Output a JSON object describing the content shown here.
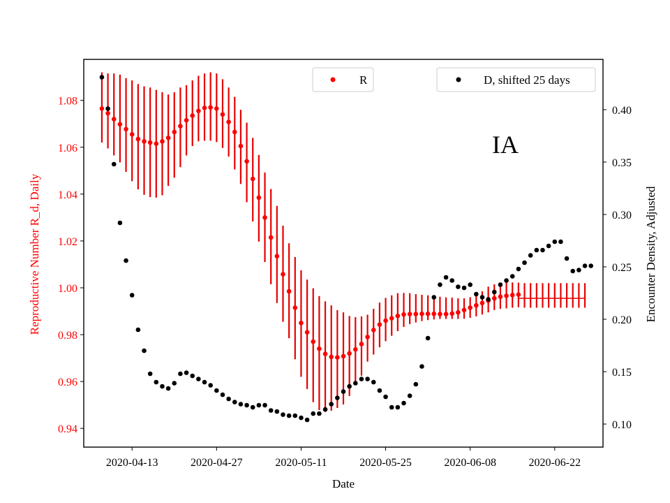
{
  "chart_data": {
    "type": "scatter",
    "xlabel": "Date",
    "ylabel_left": "Reproductive Number R_d, Daily",
    "ylabel_right": "Encounter Density, Adjusted",
    "annotation": "IA",
    "x_start": "2020-04-08",
    "x_end": "2020-06-28",
    "x_range": [
      "2020-04-05",
      "2020-06-30"
    ],
    "x_ticks": [
      "2020-04-13",
      "2020-04-27",
      "2020-05-11",
      "2020-05-25",
      "2020-06-08",
      "2020-06-22"
    ],
    "ylim_left": [
      0.932,
      1.0975
    ],
    "ylim_right": [
      0.078,
      0.448
    ],
    "yticks_left": [
      0.94,
      0.96,
      0.98,
      1.0,
      1.02,
      1.04,
      1.06,
      1.08
    ],
    "ytick_labels_left": [
      "0.94",
      "0.96",
      "0.98",
      "1.00",
      "1.02",
      "1.04",
      "1.06",
      "1.08"
    ],
    "yticks_right": [
      0.1,
      0.15,
      0.2,
      0.25,
      0.3,
      0.35,
      0.4
    ],
    "ytick_labels_right": [
      "0.10",
      "0.15",
      "0.20",
      "0.25",
      "0.30",
      "0.35",
      "0.40"
    ],
    "colors": {
      "R": "#ff0000",
      "R_errorbar": "#e60000",
      "D": "#000000",
      "left_axis_text": "#ff0000",
      "right_axis_text": "#000000"
    },
    "legend_R": {
      "position": "top-center",
      "label": "R"
    },
    "legend_D": {
      "position": "top-right",
      "label": "D, shifted 25 days"
    },
    "series": [
      {
        "name": "R",
        "axis": "left",
        "markers_through_index": 69,
        "values": [
          1.0765,
          1.0745,
          1.072,
          1.0698,
          1.0677,
          1.0655,
          1.0635,
          1.0625,
          1.062,
          1.0615,
          1.0625,
          1.064,
          1.0665,
          1.069,
          1.0715,
          1.0735,
          1.0755,
          1.0768,
          1.077,
          1.0765,
          1.074,
          1.0708,
          1.0665,
          1.0605,
          1.054,
          1.0465,
          1.0385,
          1.03,
          1.0215,
          1.0135,
          1.0058,
          0.9985,
          0.9915,
          0.985,
          0.981,
          0.977,
          0.974,
          0.9718,
          0.9705,
          0.9703,
          0.9708,
          0.972,
          0.9737,
          0.976,
          0.979,
          0.982,
          0.9843,
          0.986,
          0.987,
          0.988,
          0.9886,
          0.9888,
          0.9888,
          0.9889,
          0.9889,
          0.9889,
          0.9888,
          0.9888,
          0.989,
          0.9895,
          0.9905,
          0.9915,
          0.9925,
          0.9935,
          0.9945,
          0.9955,
          0.9962,
          0.9966,
          0.9969,
          0.9971,
          0.9955,
          0.9955,
          0.9955,
          0.9955,
          0.9955,
          0.9955,
          0.9955,
          0.9955,
          0.9955,
          0.9955,
          0.9955
        ],
        "lower": [
          1.062,
          1.0595,
          1.0565,
          1.0535,
          1.0495,
          1.0455,
          1.042,
          1.0397,
          1.0387,
          1.0385,
          1.0395,
          1.0435,
          1.047,
          1.0515,
          1.0565,
          1.0605,
          1.0625,
          1.0628,
          1.0628,
          1.0622,
          1.0597,
          1.056,
          1.0505,
          1.0443,
          1.0365,
          1.0283,
          1.0197,
          1.011,
          1.0015,
          0.9935,
          0.9855,
          0.9785,
          0.9695,
          0.962,
          0.9568,
          0.9512,
          0.9478,
          0.947,
          0.9475,
          0.9487,
          0.9502,
          0.9538,
          0.9585,
          0.9625,
          0.9685,
          0.9715,
          0.9746,
          0.9772,
          0.9795,
          0.9815,
          0.9833,
          0.9845,
          0.9852,
          0.9858,
          0.9862,
          0.9865,
          0.9867,
          0.9867,
          0.9867,
          0.9867,
          0.9868,
          0.9872,
          0.9878,
          0.9886,
          0.9895,
          0.9905,
          0.991,
          0.9912,
          0.9915,
          0.9917,
          0.9915,
          0.9915,
          0.9915,
          0.9915,
          0.9915,
          0.9915,
          0.9915,
          0.9915,
          0.9915,
          0.9915,
          0.9915
        ],
        "upper": [
          1.092,
          1.0915,
          1.0915,
          1.091,
          1.0895,
          1.0885,
          1.087,
          1.086,
          1.0855,
          1.0845,
          1.0835,
          1.0825,
          1.0835,
          1.0855,
          1.0865,
          1.0885,
          1.0905,
          1.0915,
          1.092,
          1.0915,
          1.089,
          1.0855,
          1.0815,
          1.076,
          1.0705,
          1.064,
          1.0567,
          1.0492,
          1.0422,
          1.035,
          1.0265,
          1.019,
          1.0131,
          1.0075,
          1.0035,
          0.9998,
          0.9965,
          0.9942,
          0.9925,
          0.9905,
          0.9895,
          0.988,
          0.9875,
          0.9878,
          0.9885,
          0.991,
          0.9937,
          0.9957,
          0.9968,
          0.9977,
          0.9978,
          0.9977,
          0.9973,
          0.997,
          0.9968,
          0.9966,
          0.9962,
          0.9959,
          0.9958,
          0.9955,
          0.9955,
          0.996,
          0.997,
          0.9985,
          1.0005,
          1.0015,
          1.002,
          1.0022,
          1.0023,
          1.0022,
          1.002,
          1.002,
          1.002,
          1.002,
          1.002,
          1.002,
          1.002,
          1.002,
          1.002,
          1.002,
          1.002
        ]
      },
      {
        "name": "D, shifted 25 days",
        "axis": "right",
        "values": [
          0.431,
          0.401,
          0.348,
          0.292,
          0.256,
          0.223,
          0.19,
          0.17,
          0.148,
          0.14,
          0.136,
          0.134,
          0.139,
          0.148,
          0.149,
          0.146,
          0.143,
          0.14,
          0.137,
          0.132,
          0.128,
          0.124,
          0.121,
          0.119,
          0.118,
          0.116,
          0.118,
          0.118,
          0.113,
          0.112,
          0.109,
          0.108,
          0.108,
          0.106,
          0.104,
          0.11,
          0.11,
          0.114,
          0.119,
          0.125,
          0.131,
          0.136,
          0.139,
          0.143,
          0.143,
          0.14,
          0.132,
          0.126,
          0.116,
          0.116,
          0.12,
          0.127,
          0.138,
          0.155,
          0.182,
          0.221,
          0.233,
          0.24,
          0.237,
          0.231,
          0.23,
          0.233,
          0.224,
          0.221,
          0.219,
          0.226,
          0.233,
          0.237,
          0.241,
          0.248,
          0.254,
          0.261,
          0.266,
          0.266,
          0.27,
          0.274,
          0.274,
          0.258,
          0.246,
          0.247,
          0.251,
          0.251
        ]
      }
    ]
  }
}
